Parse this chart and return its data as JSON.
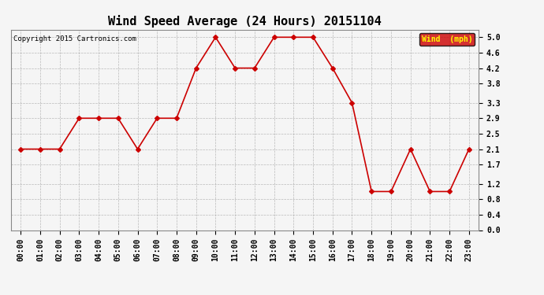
{
  "title": "Wind Speed Average (24 Hours) 20151104",
  "copyright": "Copyright 2015 Cartronics.com",
  "legend_label": "Wind  (mph)",
  "hours": [
    "00:00",
    "01:00",
    "02:00",
    "03:00",
    "04:00",
    "05:00",
    "06:00",
    "07:00",
    "08:00",
    "09:00",
    "10:00",
    "11:00",
    "12:00",
    "13:00",
    "14:00",
    "15:00",
    "16:00",
    "17:00",
    "18:00",
    "19:00",
    "20:00",
    "21:00",
    "22:00",
    "23:00"
  ],
  "wind_values": [
    2.1,
    2.1,
    2.1,
    2.9,
    2.9,
    2.9,
    2.1,
    2.9,
    2.9,
    4.2,
    5.0,
    4.2,
    4.2,
    5.0,
    5.0,
    5.0,
    4.2,
    3.3,
    1.0,
    1.0,
    2.1,
    1.0,
    1.0,
    2.1
  ],
  "line_color": "#cc0000",
  "marker": "D",
  "marker_size": 3,
  "bg_color": "#f5f5f5",
  "grid_color": "#aaaaaa",
  "ylim": [
    0.0,
    5.2
  ],
  "yticks": [
    0.0,
    0.4,
    0.8,
    1.2,
    1.7,
    2.1,
    2.5,
    2.9,
    3.3,
    3.8,
    4.2,
    4.6,
    5.0
  ],
  "title_fontsize": 11,
  "axis_fontsize": 7,
  "legend_bg": "#cc0000",
  "legend_text_color": "#ffff00"
}
